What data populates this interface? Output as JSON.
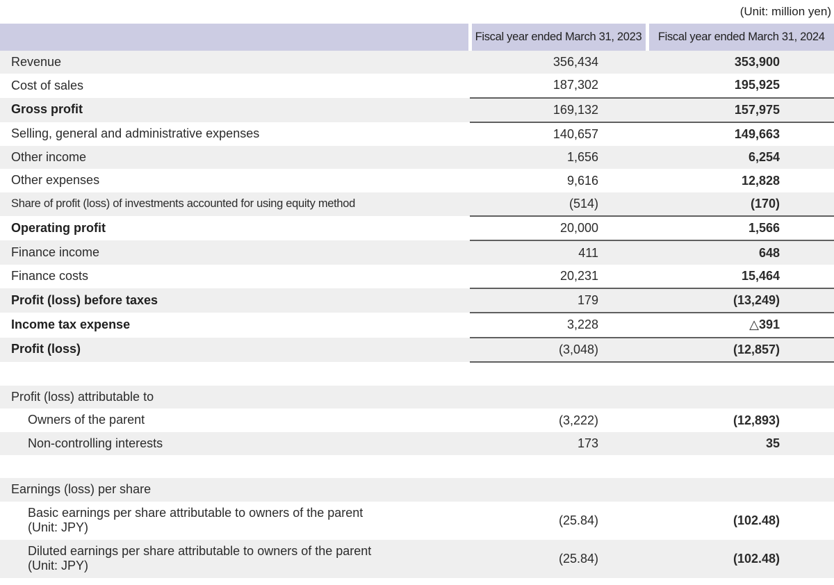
{
  "unit_note": "(Unit: million yen)",
  "colors": {
    "header_bg": "#cccce3",
    "row_alt_bg": "#efefef",
    "rule_line": "#5f5f5f"
  },
  "table": {
    "columns": [
      {
        "label": "Fiscal year ended March 31, 2023"
      },
      {
        "label": "Fiscal year ended March 31, 2024"
      }
    ],
    "rows": [
      {
        "label": "Revenue",
        "fy2023": "356,434",
        "fy2024": "353,900"
      },
      {
        "label": "Cost of sales",
        "fy2023": "187,302",
        "fy2024": "195,925"
      },
      {
        "label": "Gross profit",
        "fy2023": "169,132",
        "fy2024": "157,975"
      },
      {
        "label": "Selling, general and administrative expenses",
        "fy2023": "140,657",
        "fy2024": "149,663"
      },
      {
        "label": "Other income",
        "fy2023": "1,656",
        "fy2024": "6,254"
      },
      {
        "label": "Other expenses",
        "fy2023": "9,616",
        "fy2024": "12,828"
      },
      {
        "label": "Share of profit (loss) of investments accounted for using equity method",
        "fy2023": "(514)",
        "fy2024": "(170)"
      },
      {
        "label": "Operating profit",
        "fy2023": "20,000",
        "fy2024": "1,566"
      },
      {
        "label": "Finance income",
        "fy2023": "411",
        "fy2024": "648"
      },
      {
        "label": "Finance costs",
        "fy2023": "20,231",
        "fy2024": "15,464"
      },
      {
        "label": "Profit (loss) before taxes",
        "fy2023": "179",
        "fy2024": "(13,249)"
      },
      {
        "label": "Income tax expense",
        "fy2023": "3,228",
        "fy2024": "△391"
      },
      {
        "label": "Profit (loss)",
        "fy2023": "(3,048)",
        "fy2024": "(12,857)"
      },
      {
        "label": "",
        "fy2023": "",
        "fy2024": ""
      },
      {
        "label": "Profit (loss) attributable to",
        "fy2023": "",
        "fy2024": ""
      },
      {
        "label": "Owners of the parent",
        "fy2023": "(3,222)",
        "fy2024": "(12,893)"
      },
      {
        "label": "Non-controlling interests",
        "fy2023": "173",
        "fy2024": "35"
      },
      {
        "label": "",
        "fy2023": "",
        "fy2024": ""
      },
      {
        "label": "Earnings (loss) per share",
        "fy2023": "",
        "fy2024": ""
      },
      {
        "label": "Basic earnings per share attributable to owners of the parent",
        "label2": "(Unit: JPY)",
        "fy2023": "(25.84)",
        "fy2024": "(102.48)"
      },
      {
        "label": "Diluted earnings per share attributable to owners of the parent",
        "label2": "(Unit: JPY)",
        "fy2023": "(25.84)",
        "fy2024": "(102.48)"
      }
    ]
  }
}
